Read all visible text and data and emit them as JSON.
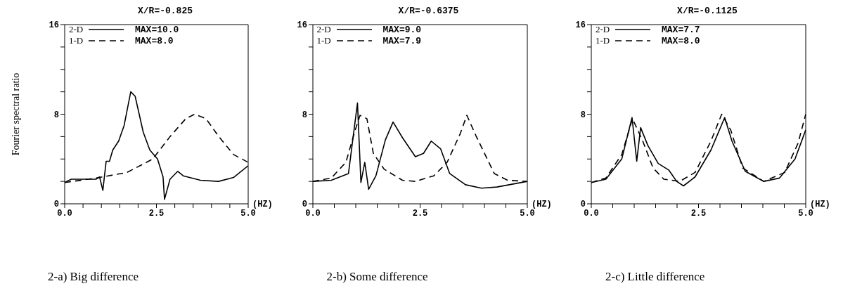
{
  "chart_data": [
    {
      "type": "line",
      "title": "X/R=-0.825",
      "xlabel": "(HZ)",
      "ylabel": "Fourier spectral ratio",
      "legend": "top left",
      "xlim": [
        0,
        5
      ],
      "ylim": [
        0,
        16
      ],
      "xticks": [
        {
          "value": 0,
          "label": "0.0"
        },
        {
          "value": 0.5,
          "label": null
        },
        {
          "value": 1,
          "label": null
        },
        {
          "value": 1.5,
          "label": null
        },
        {
          "value": 2,
          "label": null
        },
        {
          "value": 2.5,
          "label": "2.5"
        },
        {
          "value": 3,
          "label": null
        },
        {
          "value": 3.5,
          "label": null
        },
        {
          "value": 4,
          "label": null
        },
        {
          "value": 4.5,
          "label": null
        },
        {
          "value": 5,
          "label": "5.0"
        }
      ],
      "yticks": [
        0,
        {
          "value": 2,
          "label": null
        },
        {
          "value": 4,
          "label": null
        },
        {
          "value": 6,
          "label": null
        },
        8,
        {
          "value": 10,
          "label": null
        },
        {
          "value": 12,
          "label": null
        },
        {
          "value": 14,
          "label": null
        },
        16
      ],
      "annotations": [
        "MAX=10.0",
        "MAX=8.0",
        "2-a) Big difference"
      ],
      "series": [
        {
          "name": "2-D",
          "color": "#000000",
          "line_style": "solid",
          "x": [
            0,
            0.18,
            0.86,
            0.95,
            1.04,
            1.13,
            1.22,
            1.31,
            1.47,
            1.62,
            1.8,
            1.92,
            2.14,
            2.32,
            2.53,
            2.68,
            2.72,
            2.87,
            3.08,
            3.23,
            3.7,
            4.19,
            4.6,
            5
          ],
          "values": [
            1.9,
            2.2,
            2.2,
            2.4,
            1.2,
            3.8,
            3.8,
            4.8,
            5.6,
            7,
            10,
            9.6,
            6.4,
            4.8,
            4,
            2.4,
            0.4,
            2.2,
            2.9,
            2.5,
            2.1,
            2,
            2.35,
            3.4
          ]
        },
        {
          "name": "1-D",
          "color": "#000000",
          "line_style": "dashed",
          "x": [
            0,
            0.86,
            1.7,
            2.4,
            2.87,
            3.3,
            3.54,
            3.85,
            4.2,
            4.6,
            5
          ],
          "values": [
            1.9,
            2.3,
            2.8,
            4,
            6,
            7.6,
            8,
            7.6,
            6,
            4.4,
            3.7
          ]
        }
      ]
    },
    {
      "type": "line",
      "title": "X/R=-0.6375",
      "xlabel": "(HZ)",
      "legend": "top left",
      "xlim": [
        0,
        5
      ],
      "ylim": [
        0,
        16
      ],
      "xticks": [
        {
          "value": 0,
          "label": "0.0"
        },
        {
          "value": 0.5,
          "label": null
        },
        {
          "value": 1,
          "label": null
        },
        {
          "value": 1.5,
          "label": null
        },
        {
          "value": 2,
          "label": null
        },
        {
          "value": 2.5,
          "label": "2.5"
        },
        {
          "value": 3,
          "label": null
        },
        {
          "value": 3.5,
          "label": null
        },
        {
          "value": 4,
          "label": null
        },
        {
          "value": 4.5,
          "label": null
        },
        {
          "value": 5,
          "label": "5.0"
        }
      ],
      "yticks": [
        0,
        {
          "value": 2,
          "label": null
        },
        {
          "value": 4,
          "label": null
        },
        {
          "value": 6,
          "label": null
        },
        8,
        {
          "value": 10,
          "label": null
        },
        {
          "value": 12,
          "label": null
        },
        {
          "value": 14,
          "label": null
        },
        16
      ],
      "annotations": [
        "MAX=9.0",
        "MAX=7.9",
        "2-b) Some difference"
      ],
      "series": [
        {
          "name": "2-D",
          "color": "#000000",
          "line_style": "solid",
          "x": [
            0,
            0.43,
            0.83,
            1.04,
            1.12,
            1.21,
            1.3,
            1.47,
            1.69,
            1.87,
            2.09,
            2.39,
            2.58,
            2.76,
            2.98,
            3.19,
            3.56,
            3.93,
            4.29,
            5
          ],
          "values": [
            2,
            2.1,
            2.7,
            9,
            1.9,
            3.7,
            1.3,
            2.5,
            5.7,
            7.3,
            5.9,
            4.2,
            4.5,
            5.6,
            4.9,
            2.7,
            1.7,
            1.4,
            1.5,
            2
          ]
        },
        {
          "name": "1-D",
          "color": "#000000",
          "line_style": "dashed",
          "x": [
            0,
            0.43,
            0.77,
            0.98,
            1.1,
            1.26,
            1.41,
            1.66,
            2.09,
            2.39,
            2.82,
            3.13,
            3.44,
            3.59,
            3.8,
            4.23,
            4.54,
            5
          ],
          "values": [
            2,
            2.3,
            3.7,
            6.5,
            7.9,
            7.6,
            4.5,
            3.1,
            2.1,
            2,
            2.5,
            3.7,
            6.3,
            7.9,
            6.1,
            2.7,
            2.1,
            2
          ]
        }
      ]
    },
    {
      "type": "line",
      "title": "X/R=-0.1125",
      "xlabel": "(HZ)",
      "legend": "top left",
      "xlim": [
        0,
        5
      ],
      "ylim": [
        0,
        16
      ],
      "xticks": [
        {
          "value": 0,
          "label": "0.0"
        },
        {
          "value": 0.5,
          "label": null
        },
        {
          "value": 1,
          "label": null
        },
        {
          "value": 1.5,
          "label": null
        },
        {
          "value": 2,
          "label": null
        },
        {
          "value": 2.5,
          "label": "2.5"
        },
        {
          "value": 3,
          "label": null
        },
        {
          "value": 3.5,
          "label": null
        },
        {
          "value": 4,
          "label": null
        },
        {
          "value": 4.5,
          "label": null
        },
        {
          "value": 5,
          "label": "5.0"
        }
      ],
      "yticks": [
        0,
        {
          "value": 2,
          "label": null
        },
        {
          "value": 4,
          "label": null
        },
        {
          "value": 6,
          "label": null
        },
        8,
        {
          "value": 10,
          "label": null
        },
        {
          "value": 12,
          "label": null
        },
        {
          "value": 14,
          "label": null
        },
        16
      ],
      "annotations": [
        "MAX=7.7",
        "MAX=8.0",
        "2-c) Little difference"
      ],
      "series": [
        {
          "name": "2-D",
          "color": "#000000",
          "line_style": "solid",
          "x": [
            0,
            0.34,
            0.71,
            0.95,
            1.06,
            1.15,
            1.32,
            1.56,
            1.81,
            1.99,
            2.15,
            2.42,
            2.79,
            3.11,
            3.28,
            3.59,
            4.02,
            4.39,
            4.75,
            5
          ],
          "values": [
            1.9,
            2.2,
            4,
            7.7,
            3.8,
            6.8,
            5.2,
            3.6,
            3,
            2,
            1.6,
            2.4,
            4.8,
            7.7,
            5.6,
            2.9,
            2,
            2.3,
            4,
            6.6
          ]
        },
        {
          "name": "1-D",
          "color": "#000000",
          "line_style": "dashed",
          "x": [
            0,
            0.34,
            0.71,
            0.96,
            1.2,
            1.44,
            1.69,
            2.06,
            2.42,
            2.79,
            3.04,
            3.25,
            3.53,
            4.02,
            4.51,
            4.82,
            5
          ],
          "values": [
            1.9,
            2.3,
            4.4,
            7.6,
            5.6,
            3.2,
            2.2,
            2,
            2.8,
            5.6,
            8,
            6.6,
            3.2,
            2,
            2.8,
            5.4,
            8
          ]
        }
      ]
    }
  ]
}
